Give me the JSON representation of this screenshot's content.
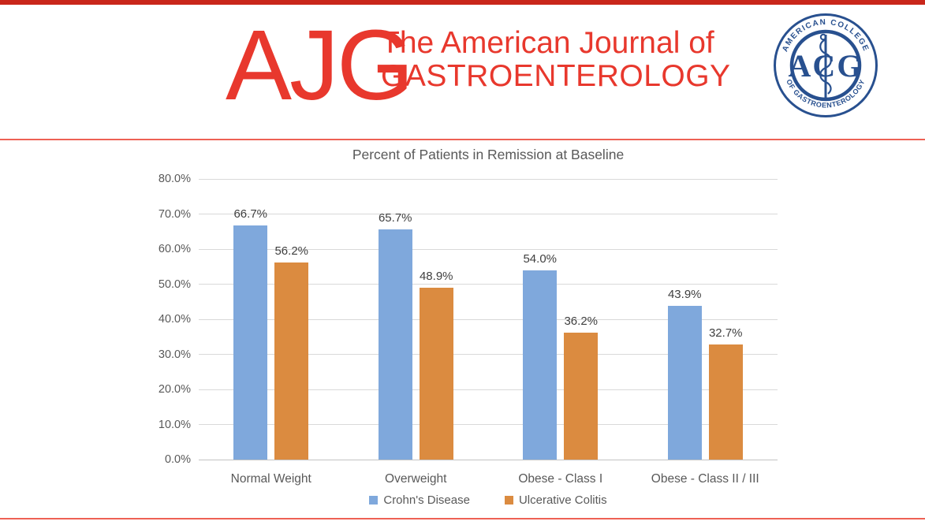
{
  "header": {
    "wordmark": "AJG",
    "journal_line1": "The American Journal of",
    "journal_line2": "GASTROENTEROLOGY",
    "seal": {
      "top_text": "AMERICAN COLLEGE",
      "bottom_text": "OF GASTROENTEROLOGY",
      "center_text": "ACG"
    },
    "colors": {
      "brand_red": "#E8382D",
      "top_bar_red": "#C9271B",
      "thin_line_red": "#EE6154",
      "seal_navy": "#28508F"
    }
  },
  "chart_data": {
    "type": "bar",
    "title": "Percent of Patients in Remission at Baseline",
    "categories": [
      "Normal Weight",
      "Overweight",
      "Obese  - Class I",
      "Obese - Class II / III"
    ],
    "series": [
      {
        "name": "Crohn's Disease",
        "color": "#7FA8DC",
        "values": [
          66.7,
          65.7,
          54.0,
          43.9
        ],
        "labels": [
          "66.7%",
          "65.7%",
          "54.0%",
          "43.9%"
        ]
      },
      {
        "name": "Ulcerative Colitis",
        "color": "#DB8B40",
        "values": [
          56.2,
          48.9,
          36.2,
          32.7
        ],
        "labels": [
          "56.2%",
          "48.9%",
          "36.2%",
          "32.7%"
        ]
      }
    ],
    "ylim": [
      0,
      80
    ],
    "yticks": [
      0,
      10,
      20,
      30,
      40,
      50,
      60,
      70,
      80
    ],
    "ytick_labels": [
      "0.0%",
      "10.0%",
      "20.0%",
      "30.0%",
      "40.0%",
      "50.0%",
      "60.0%",
      "70.0%",
      "80.0%"
    ],
    "grid": true,
    "legend_position": "bottom",
    "text_color": "#595959",
    "gridline_color": "#D9D9D9"
  }
}
